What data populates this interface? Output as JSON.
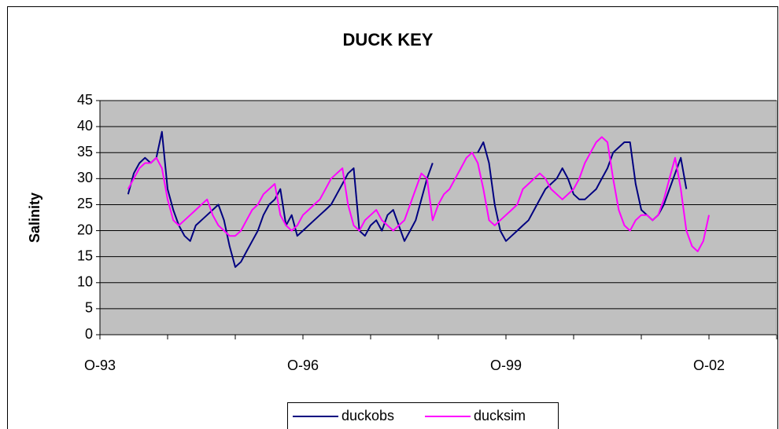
{
  "chart_data": {
    "type": "line",
    "title": "DUCK KEY",
    "y_label": "Salinity",
    "x": [
      "1994-03",
      "1994-04",
      "1994-05",
      "1994-06",
      "1994-07",
      "1994-08",
      "1994-09",
      "1994-10",
      "1994-11",
      "1994-12",
      "1995-01",
      "1995-02",
      "1995-03",
      "1995-04",
      "1995-05",
      "1995-06",
      "1995-07",
      "1995-08",
      "1995-09",
      "1995-10",
      "1995-11",
      "1995-12",
      "1996-01",
      "1996-02",
      "1996-03",
      "1996-04",
      "1996-05",
      "1996-06",
      "1996-07",
      "1996-08",
      "1996-09",
      "1996-10",
      "1996-11",
      "1996-12",
      "1997-01",
      "1997-02",
      "1997-03",
      "1997-04",
      "1997-05",
      "1997-06",
      "1997-07",
      "1997-08",
      "1997-09",
      "1997-10",
      "1997-11",
      "1997-12",
      "1998-01",
      "1998-02",
      "1998-03",
      "1998-04",
      "1998-05",
      "1998-06",
      "1998-07",
      "1998-08",
      "1998-09",
      "1998-10",
      "1998-11",
      "1998-12",
      "1999-01",
      "1999-02",
      "1999-03",
      "1999-04",
      "1999-05",
      "1999-06",
      "1999-07",
      "1999-08",
      "1999-09",
      "1999-10",
      "1999-11",
      "1999-12",
      "2000-01",
      "2000-02",
      "2000-03",
      "2000-04",
      "2000-05",
      "2000-06",
      "2000-07",
      "2000-08",
      "2000-09",
      "2000-10",
      "2000-11",
      "2000-12",
      "2001-01",
      "2001-02",
      "2001-03",
      "2001-04",
      "2001-05",
      "2001-06",
      "2001-07",
      "2001-08",
      "2001-09",
      "2001-10",
      "2001-11",
      "2001-12",
      "2002-01",
      "2002-02",
      "2002-03",
      "2002-04",
      "2002-05",
      "2002-06",
      "2002-07",
      "2002-08",
      "2002-09",
      "2002-10"
    ],
    "series": [
      {
        "name": "duckobs",
        "color": "#000080",
        "values": [
          27,
          31,
          33,
          34,
          33,
          34,
          39,
          28,
          24,
          21,
          19,
          18,
          21,
          22,
          23,
          24,
          25,
          22,
          17,
          13,
          14,
          16,
          18,
          20,
          23,
          25,
          26,
          28,
          21,
          23,
          19,
          20,
          21,
          22,
          23,
          24,
          25,
          27,
          29,
          31,
          32,
          20,
          19,
          21,
          22,
          20,
          23,
          24,
          21,
          18,
          20,
          22,
          26,
          30,
          33,
          null,
          null,
          null,
          null,
          null,
          null,
          null,
          35,
          37,
          33,
          25,
          20,
          18,
          19,
          20,
          21,
          22,
          24,
          26,
          28,
          29,
          30,
          32,
          30,
          27,
          26,
          26,
          27,
          28,
          30,
          32,
          35,
          36,
          37,
          37,
          29,
          24,
          23,
          22,
          23,
          25,
          28,
          31,
          34,
          28,
          null,
          null,
          null,
          null
        ]
      },
      {
        "name": "ducksim",
        "color": "#ff00ff",
        "values": [
          28,
          30,
          32,
          33,
          33,
          34,
          32,
          26,
          22,
          21,
          22,
          23,
          24,
          25,
          26,
          23,
          21,
          20,
          19,
          19,
          20,
          22,
          24,
          25,
          27,
          28,
          29,
          23,
          21,
          20,
          21,
          23,
          24,
          25,
          26,
          28,
          30,
          31,
          32,
          25,
          21,
          20,
          22,
          23,
          24,
          22,
          21,
          20,
          21,
          22,
          25,
          28,
          31,
          30,
          22,
          25,
          27,
          28,
          30,
          32,
          34,
          35,
          33,
          28,
          22,
          21,
          22,
          23,
          24,
          25,
          28,
          29,
          30,
          31,
          30,
          28,
          27,
          26,
          27,
          28,
          30,
          33,
          35,
          37,
          38,
          37,
          30,
          24,
          21,
          20,
          22,
          23,
          23,
          22,
          23,
          26,
          30,
          34,
          28,
          20,
          17,
          16,
          18,
          23
        ]
      }
    ],
    "xlim": [
      "1993-10",
      "2003-10"
    ],
    "xticks": [
      {
        "value": "1993-10",
        "label": "O-93"
      },
      {
        "value": "1996-10",
        "label": "O-96"
      },
      {
        "value": "1999-10",
        "label": "O-99"
      },
      {
        "value": "2002-10",
        "label": "O-02"
      }
    ],
    "xminor_ticks": [
      "1994-10",
      "1995-10",
      "1997-10",
      "1998-10",
      "2000-10",
      "2001-10",
      "2003-10"
    ],
    "ylim": [
      0,
      45
    ],
    "yticks": [
      0,
      5,
      10,
      15,
      20,
      25,
      30,
      35,
      40,
      45
    ],
    "grid": true,
    "plot_background": "#c0c0c0",
    "legend": "bottom"
  }
}
